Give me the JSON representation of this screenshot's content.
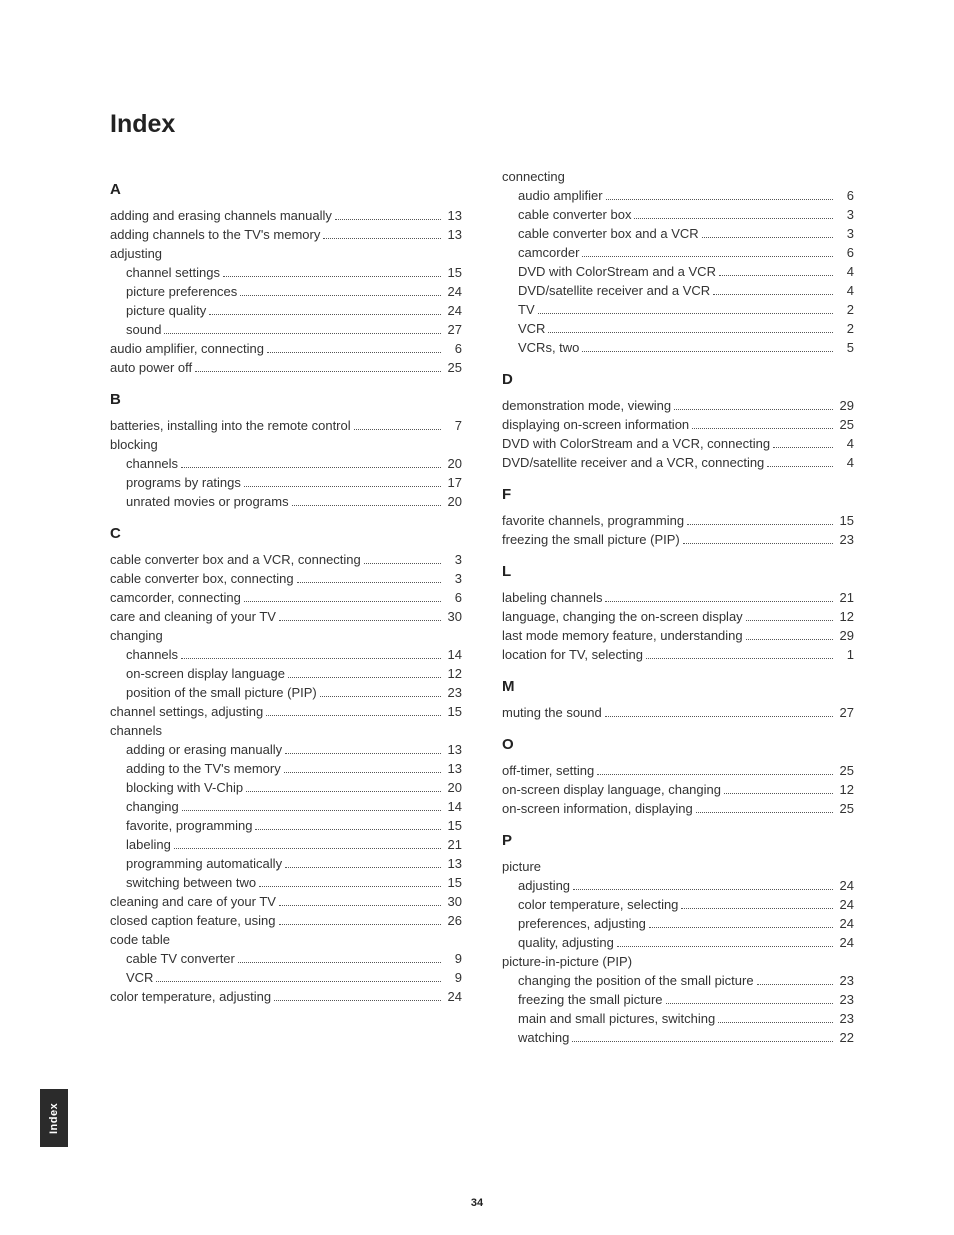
{
  "title": "Index",
  "side_tab": "Index",
  "page_number": "34",
  "left": [
    {
      "letter": "A"
    },
    {
      "t": "adding and erasing channels manually",
      "p": "13"
    },
    {
      "t": "adding channels to the TV's memory",
      "p": "13"
    },
    {
      "t": "adjusting",
      "np": true
    },
    {
      "t": "channel settings",
      "p": "15",
      "sub": true
    },
    {
      "t": "picture preferences",
      "p": "24",
      "sub": true
    },
    {
      "t": "picture quality",
      "p": "24",
      "sub": true
    },
    {
      "t": "sound",
      "p": "27",
      "sub": true
    },
    {
      "t": "audio amplifier, connecting",
      "p": "6"
    },
    {
      "t": "auto power off",
      "p": "25"
    },
    {
      "letter": "B"
    },
    {
      "t": "batteries, installing into the remote control",
      "p": "7"
    },
    {
      "t": "blocking",
      "np": true
    },
    {
      "t": "channels",
      "p": "20",
      "sub": true
    },
    {
      "t": "programs by ratings",
      "p": "17",
      "sub": true
    },
    {
      "t": "unrated movies or programs",
      "p": "20",
      "sub": true
    },
    {
      "letter": "C"
    },
    {
      "t": "cable converter box and a VCR, connecting",
      "p": "3"
    },
    {
      "t": "cable converter box, connecting",
      "p": "3"
    },
    {
      "t": "camcorder, connecting",
      "p": "6"
    },
    {
      "t": "care and cleaning of your TV",
      "p": "30"
    },
    {
      "t": "changing",
      "np": true
    },
    {
      "t": "channels",
      "p": "14",
      "sub": true
    },
    {
      "t": "on-screen display language",
      "p": "12",
      "sub": true
    },
    {
      "t": "position of the small picture (PIP)",
      "p": "23",
      "sub": true
    },
    {
      "t": "channel settings, adjusting",
      "p": "15"
    },
    {
      "t": "channels",
      "np": true
    },
    {
      "t": "adding or erasing manually",
      "p": "13",
      "sub": true
    },
    {
      "t": "adding to the TV's memory",
      "p": "13",
      "sub": true
    },
    {
      "t": "blocking with V-Chip",
      "p": "20",
      "sub": true
    },
    {
      "t": "changing",
      "p": "14",
      "sub": true
    },
    {
      "t": "favorite, programming",
      "p": "15",
      "sub": true
    },
    {
      "t": "labeling",
      "p": "21",
      "sub": true
    },
    {
      "t": "programming automatically",
      "p": "13",
      "sub": true
    },
    {
      "t": "switching between two",
      "p": "15",
      "sub": true
    },
    {
      "t": "cleaning and care of your TV",
      "p": "30"
    },
    {
      "t": "closed caption feature, using",
      "p": "26"
    },
    {
      "t": "code table",
      "np": true
    },
    {
      "t": "cable TV converter",
      "p": "9",
      "sub": true
    },
    {
      "t": "VCR",
      "p": "9",
      "sub": true
    },
    {
      "t": "color temperature, adjusting",
      "p": "24"
    }
  ],
  "right": [
    {
      "t": "connecting",
      "np": true
    },
    {
      "t": "audio amplifier",
      "p": "6",
      "sub": true
    },
    {
      "t": "cable converter box",
      "p": "3",
      "sub": true
    },
    {
      "t": "cable converter box and a VCR",
      "p": "3",
      "sub": true
    },
    {
      "t": "camcorder",
      "p": "6",
      "sub": true
    },
    {
      "t": "DVD with ColorStream and a VCR",
      "p": "4",
      "sub": true
    },
    {
      "t": "DVD/satellite receiver and a VCR",
      "p": "4",
      "sub": true
    },
    {
      "t": "TV",
      "p": "2",
      "sub": true
    },
    {
      "t": "VCR",
      "p": "2",
      "sub": true
    },
    {
      "t": "VCRs, two",
      "p": "5",
      "sub": true
    },
    {
      "letter": "D"
    },
    {
      "t": "demonstration mode, viewing",
      "p": "29"
    },
    {
      "t": "displaying on-screen information",
      "p": "25"
    },
    {
      "t": "DVD with ColorStream and a VCR, connecting",
      "p": "4"
    },
    {
      "t": "DVD/satellite receiver and a VCR, connecting",
      "p": "4"
    },
    {
      "letter": "F"
    },
    {
      "t": "favorite channels, programming",
      "p": "15"
    },
    {
      "t": "freezing the small picture (PIP)",
      "p": "23"
    },
    {
      "letter": "L"
    },
    {
      "t": "labeling channels",
      "p": "21"
    },
    {
      "t": "language, changing the on-screen display",
      "p": "12"
    },
    {
      "t": "last mode memory feature, understanding",
      "p": "29"
    },
    {
      "t": "location for TV, selecting",
      "p": "1"
    },
    {
      "letter": "M"
    },
    {
      "t": "muting the sound",
      "p": "27"
    },
    {
      "letter": "O"
    },
    {
      "t": "off-timer, setting",
      "p": "25"
    },
    {
      "t": "on-screen display language, changing",
      "p": "12"
    },
    {
      "t": "on-screen information, displaying",
      "p": "25"
    },
    {
      "letter": "P"
    },
    {
      "t": "picture",
      "np": true
    },
    {
      "t": "adjusting",
      "p": "24",
      "sub": true
    },
    {
      "t": "color temperature, selecting",
      "p": "24",
      "sub": true
    },
    {
      "t": "preferences, adjusting",
      "p": "24",
      "sub": true
    },
    {
      "t": "quality, adjusting",
      "p": "24",
      "sub": true
    },
    {
      "t": "picture-in-picture (PIP)",
      "np": true
    },
    {
      "t": "changing the position of the small picture",
      "p": "23",
      "sub": true
    },
    {
      "t": "freezing the small picture",
      "p": "23",
      "sub": true
    },
    {
      "t": "main and small pictures, switching",
      "p": "23",
      "sub": true
    },
    {
      "t": "watching",
      "p": "22",
      "sub": true
    }
  ]
}
